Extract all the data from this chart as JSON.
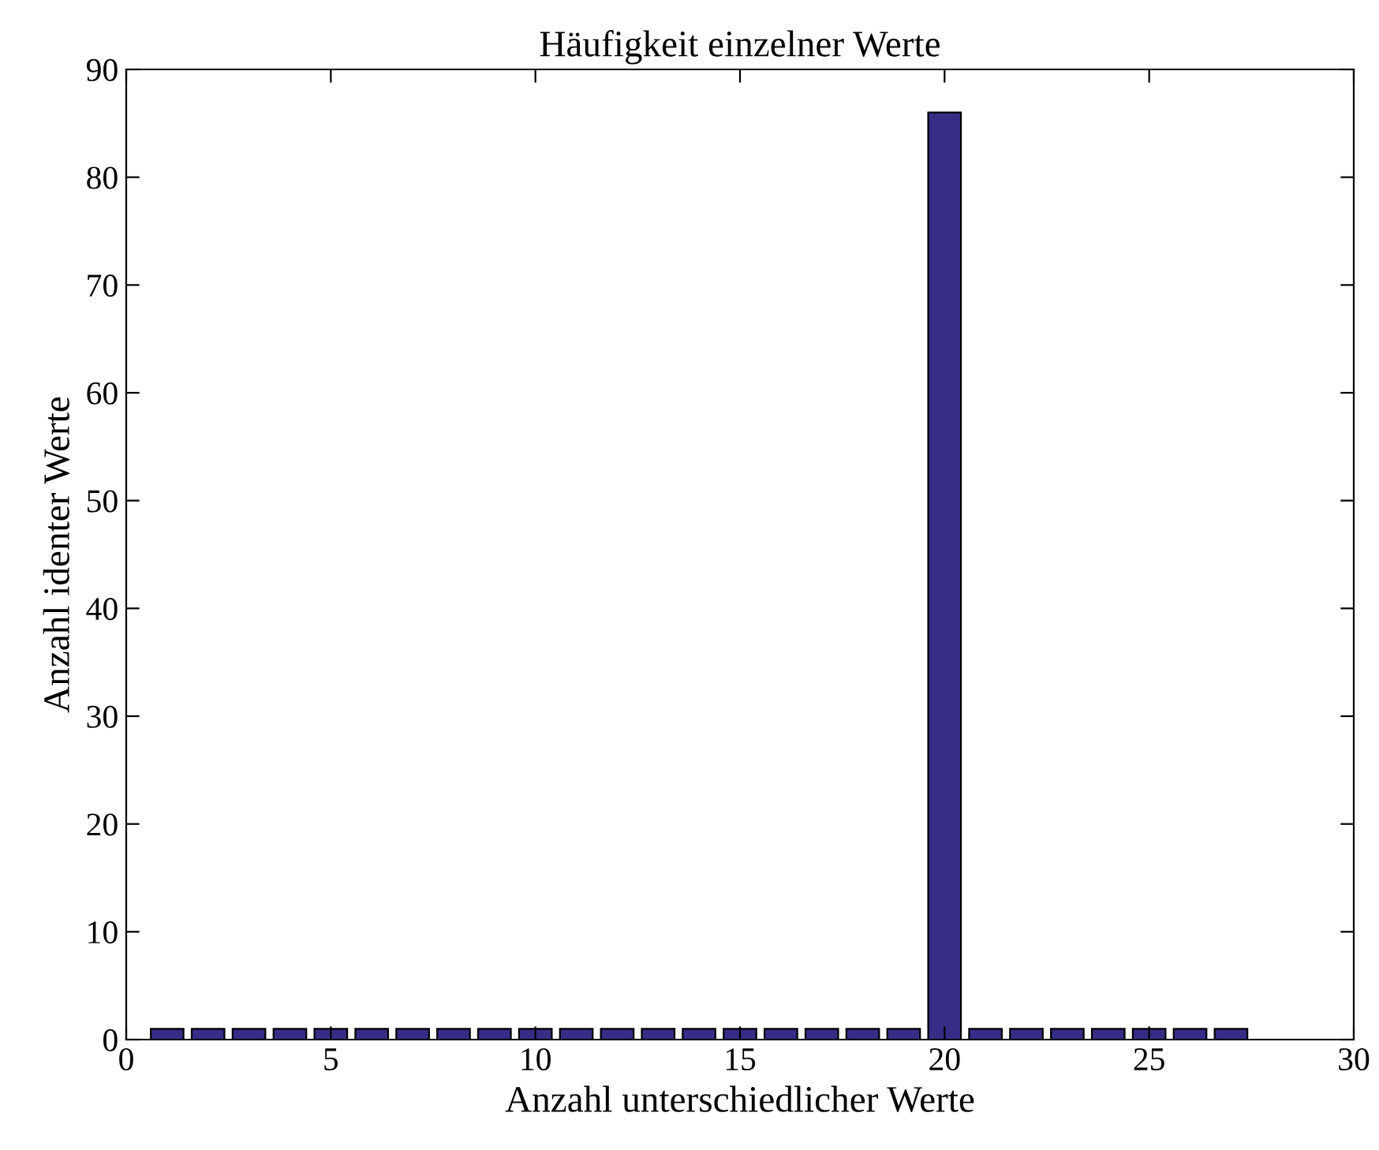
{
  "chart_data": {
    "type": "bar",
    "title": "Häufigkeit einzelner Werte",
    "xlabel": "Anzahl unterschiedlicher Werte",
    "ylabel": "Anzahl identer Werte",
    "x": [
      1,
      2,
      3,
      4,
      5,
      6,
      7,
      8,
      9,
      10,
      11,
      12,
      13,
      14,
      15,
      16,
      17,
      18,
      19,
      20,
      21,
      22,
      23,
      24,
      25,
      26,
      27
    ],
    "values": [
      1,
      1,
      1,
      1,
      1,
      1,
      1,
      1,
      1,
      1,
      1,
      1,
      1,
      1,
      1,
      1,
      1,
      1,
      1,
      86,
      1,
      1,
      1,
      1,
      1,
      1,
      1
    ],
    "color": "#352d86",
    "xlim": [
      0,
      30
    ],
    "xticks": [
      0,
      5,
      10,
      15,
      20,
      25,
      30
    ],
    "ylim": [
      0,
      90
    ],
    "yticks": [
      0,
      10,
      20,
      30,
      40,
      50,
      60,
      70,
      80,
      90
    ],
    "grid": false
  }
}
